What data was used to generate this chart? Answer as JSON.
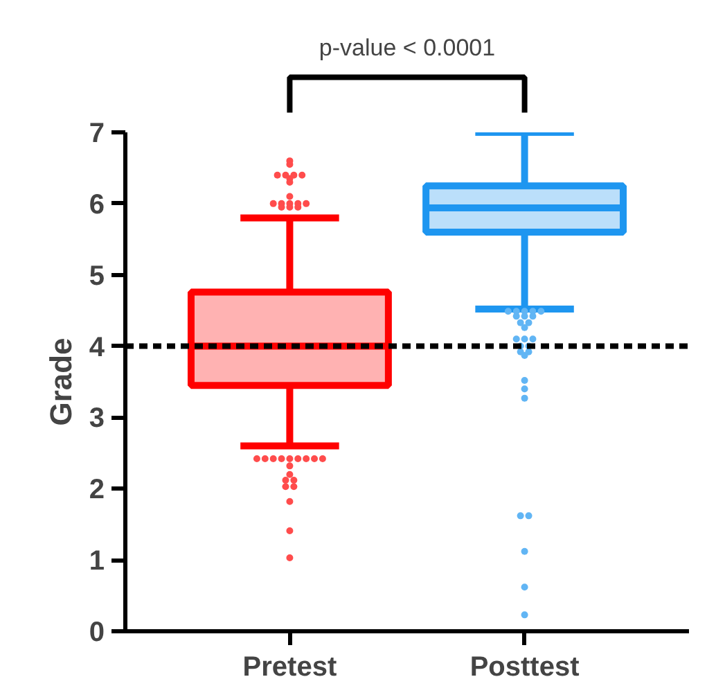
{
  "chart_data": {
    "type": "box",
    "ylabel": "Grade",
    "categories": [
      "Pretest",
      "Posttest"
    ],
    "colors": [
      "#ff0000",
      "#1e96f0"
    ],
    "boxes": [
      {
        "low": 2.6,
        "q1": 3.45,
        "median": 4.0,
        "q3": 4.76,
        "high": 5.8,
        "outliers": [
          6.6,
          6.55,
          6.4,
          6.4,
          6.4,
          6.4,
          6.35,
          6.3,
          6.1,
          6.0,
          6.0,
          6.0,
          6.0,
          6.0,
          5.95,
          5.95,
          5.95,
          2.42,
          2.42,
          2.42,
          2.42,
          2.42,
          2.42,
          2.42,
          2.42,
          2.42,
          2.32,
          2.2,
          2.12,
          2.12,
          2.03,
          2.03,
          1.82,
          1.41,
          1.03
        ]
      },
      {
        "low": 4.52,
        "q1": 5.6,
        "median": 5.94,
        "q3": 6.25,
        "high": 7.0,
        "outliers": [
          4.49,
          4.49,
          4.49,
          4.49,
          4.49,
          4.42,
          4.42,
          4.42,
          4.33,
          4.33,
          4.26,
          4.1,
          4.1,
          4.1,
          4.0,
          4.0,
          3.92,
          3.92,
          3.87,
          3.52,
          3.4,
          3.27,
          1.62,
          1.62,
          1.12,
          0.62,
          0.23
        ]
      }
    ],
    "ylim": [
      0,
      7
    ],
    "yticks": [
      0,
      1,
      2,
      3,
      4,
      5,
      6,
      7
    ],
    "grid": false,
    "ref_lines": [
      {
        "axis": "y",
        "value": 4,
        "label": null,
        "color": "#000000",
        "line_style": "dashed"
      }
    ],
    "annotations": [
      "p-value < 0.0001"
    ]
  }
}
